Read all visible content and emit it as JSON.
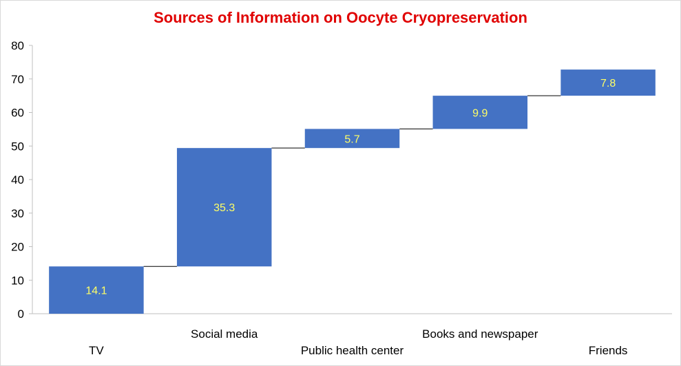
{
  "chart_data": {
    "type": "bar",
    "subtype": "waterfall",
    "title": "Sources of Information on Oocyte Cryopreservation",
    "xlabel": "",
    "ylabel": "",
    "categories": [
      "TV",
      "Social media",
      "Public health center",
      "Books and newspaper",
      "Friends"
    ],
    "values": [
      14.1,
      35.3,
      5.7,
      9.9,
      7.8
    ],
    "data_labels": [
      "14.1",
      "35.3",
      "5.7",
      "9.9",
      "7.8"
    ],
    "ylim": [
      0,
      80
    ],
    "yticks": [
      "0",
      "10",
      "20",
      "30",
      "40",
      "50",
      "60",
      "70",
      "80"
    ],
    "grid": false,
    "legend": "none",
    "colors": {
      "bar": "#4472c4",
      "data_label": "#ffff66",
      "title": "#e00000",
      "axis": "#bfbfbf",
      "connector": "#000000"
    }
  }
}
